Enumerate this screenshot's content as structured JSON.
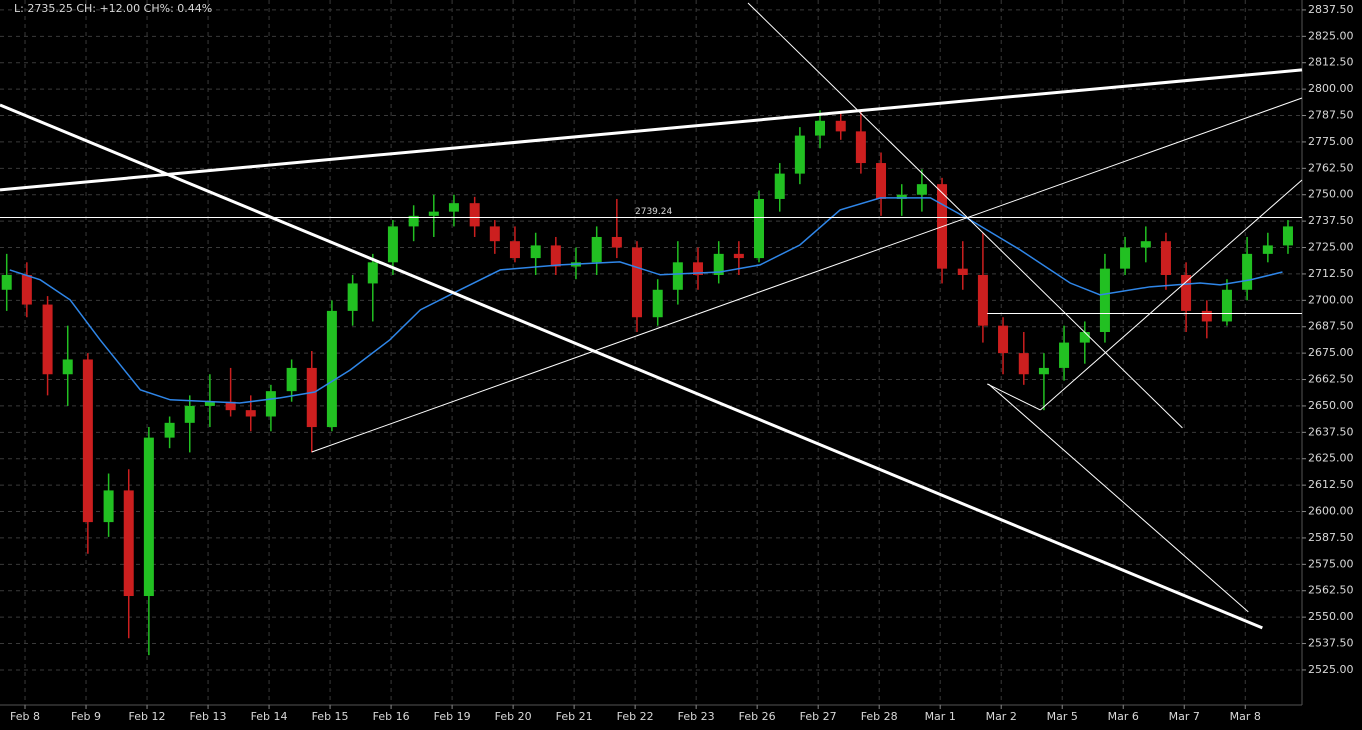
{
  "chart_data": {
    "type": "candlestick",
    "status": "L: 2735.25 CH: +12.00 CH%: 0.44%",
    "xlim": [
      -0.41,
      20.93
    ],
    "ylim": [
      2508.4,
      2842.2
    ],
    "grid": true,
    "up_color": "#22c022",
    "down_color": "#cc1f1f",
    "xticks": [
      {
        "value": 0,
        "label": "Feb 8"
      },
      {
        "value": 1,
        "label": "Feb 9"
      },
      {
        "value": 2,
        "label": "Feb 12"
      },
      {
        "value": 3,
        "label": "Feb 13"
      },
      {
        "value": 4,
        "label": "Feb 14"
      },
      {
        "value": 5,
        "label": "Feb 15"
      },
      {
        "value": 6,
        "label": "Feb 16"
      },
      {
        "value": 7,
        "label": "Feb 19"
      },
      {
        "value": 8,
        "label": "Feb 20"
      },
      {
        "value": 9,
        "label": "Feb 21"
      },
      {
        "value": 10,
        "label": "Feb 22"
      },
      {
        "value": 11,
        "label": "Feb 23"
      },
      {
        "value": 12,
        "label": "Feb 26"
      },
      {
        "value": 13,
        "label": "Feb 27"
      },
      {
        "value": 14,
        "label": "Feb 28"
      },
      {
        "value": 15,
        "label": "Mar 1"
      },
      {
        "value": 16,
        "label": "Mar 2"
      },
      {
        "value": 17,
        "label": "Mar 5"
      },
      {
        "value": 18,
        "label": "Mar 6"
      },
      {
        "value": 19,
        "label": "Mar 7"
      },
      {
        "value": 20,
        "label": "Mar 8"
      }
    ],
    "yticks": [
      {
        "value": 2525,
        "label": "2525.00"
      },
      {
        "value": 2537.5,
        "label": "2537.50"
      },
      {
        "value": 2550,
        "label": "2550.00"
      },
      {
        "value": 2562.5,
        "label": "2562.50"
      },
      {
        "value": 2575,
        "label": "2575.00"
      },
      {
        "value": 2587.5,
        "label": "2587.50"
      },
      {
        "value": 2600,
        "label": "2600.00"
      },
      {
        "value": 2612.5,
        "label": "2612.50"
      },
      {
        "value": 2625,
        "label": "2625.00"
      },
      {
        "value": 2637.5,
        "label": "2637.50"
      },
      {
        "value": 2650,
        "label": "2650.00"
      },
      {
        "value": 2662.5,
        "label": "2662.50"
      },
      {
        "value": 2675,
        "label": "2675.00"
      },
      {
        "value": 2687.5,
        "label": "2687.50"
      },
      {
        "value": 2700,
        "label": "2700.00"
      },
      {
        "value": 2712.5,
        "label": "2712.50"
      },
      {
        "value": 2725,
        "label": "2725.00"
      },
      {
        "value": 2737.5,
        "label": "2737.50"
      },
      {
        "value": 2750,
        "label": "2750.00"
      },
      {
        "value": 2762.5,
        "label": "2762.50"
      },
      {
        "value": 2775,
        "label": "2775.00"
      },
      {
        "value": 2787.5,
        "label": "2787.50"
      },
      {
        "value": 2800,
        "label": "2800.00"
      },
      {
        "value": 2812.5,
        "label": "2812.50"
      },
      {
        "value": 2825,
        "label": "2825.00"
      },
      {
        "value": 2837.5,
        "label": "2837.50"
      }
    ],
    "x": [
      -0.3,
      0.03,
      0.37,
      0.7,
      1.03,
      1.37,
      1.7,
      2.03,
      2.37,
      2.7,
      3.03,
      3.37,
      3.7,
      4.03,
      4.37,
      4.7,
      5.03,
      5.37,
      5.7,
      6.03,
      6.37,
      6.7,
      7.03,
      7.37,
      7.7,
      8.03,
      8.37,
      8.7,
      9.03,
      9.37,
      9.7,
      10.03,
      10.37,
      10.7,
      11.03,
      11.37,
      11.7,
      12.03,
      12.37,
      12.7,
      13.03,
      13.37,
      13.7,
      14.03,
      14.37,
      14.7,
      15.03,
      15.37,
      15.7,
      16.03,
      16.37,
      16.7,
      17.03,
      17.37,
      17.7,
      18.03,
      18.37,
      18.7,
      19.03,
      19.37,
      19.7,
      20.03,
      20.37,
      20.7
    ],
    "open": [
      2705,
      2712,
      2698,
      2665,
      2672,
      2595,
      2610,
      2560,
      2635,
      2642,
      2650,
      2652,
      2648,
      2645,
      2657,
      2668,
      2640,
      2695,
      2708,
      2718,
      2735,
      2740,
      2742,
      2746,
      2735,
      2728,
      2720,
      2726,
      2716,
      2718,
      2730,
      2725,
      2692,
      2705,
      2718,
      2712,
      2722,
      2720,
      2748,
      2760,
      2778,
      2785,
      2780,
      2765,
      2748,
      2750,
      2755,
      2715,
      2712,
      2688,
      2675,
      2665,
      2668,
      2680,
      2685,
      2715,
      2725,
      2728,
      2712,
      2695,
      2690,
      2705,
      2722,
      2726
    ],
    "high": [
      2722,
      2718,
      2702,
      2688,
      2675,
      2618,
      2620,
      2640,
      2645,
      2655,
      2665,
      2668,
      2655,
      2660,
      2672,
      2676,
      2700,
      2712,
      2722,
      2738,
      2745,
      2750,
      2750,
      2749,
      2738,
      2735,
      2732,
      2730,
      2725,
      2735,
      2748,
      2728,
      2710,
      2728,
      2725,
      2728,
      2728,
      2752,
      2765,
      2782,
      2790,
      2789,
      2790,
      2770,
      2755,
      2762,
      2758,
      2728,
      2732,
      2692,
      2685,
      2675,
      2688,
      2690,
      2722,
      2730,
      2735,
      2732,
      2718,
      2700,
      2710,
      2730,
      2732,
      2738
    ],
    "low": [
      2695,
      2692,
      2655,
      2650,
      2580,
      2588,
      2540,
      2532,
      2630,
      2628,
      2640,
      2645,
      2638,
      2638,
      2652,
      2628,
      2638,
      2688,
      2690,
      2712,
      2728,
      2730,
      2735,
      2730,
      2722,
      2718,
      2712,
      2712,
      2710,
      2712,
      2720,
      2685,
      2688,
      2698,
      2705,
      2708,
      2712,
      2718,
      2742,
      2755,
      2772,
      2776,
      2760,
      2740,
      2740,
      2742,
      2708,
      2705,
      2680,
      2665,
      2660,
      2648,
      2662,
      2670,
      2680,
      2712,
      2718,
      2705,
      2685,
      2682,
      2688,
      2700,
      2718,
      2722
    ],
    "close": [
      2712,
      2698,
      2665,
      2672,
      2595,
      2610,
      2560,
      2635,
      2642,
      2650,
      2652,
      2648,
      2645,
      2657,
      2668,
      2640,
      2695,
      2708,
      2718,
      2735,
      2740,
      2742,
      2746,
      2735,
      2728,
      2720,
      2726,
      2716,
      2718,
      2730,
      2725,
      2692,
      2705,
      2718,
      2712,
      2722,
      2720,
      2748,
      2760,
      2778,
      2785,
      2780,
      2765,
      2748,
      2750,
      2755,
      2715,
      2712,
      2688,
      2675,
      2665,
      2668,
      2680,
      2685,
      2715,
      2725,
      2728,
      2712,
      2695,
      2690,
      2705,
      2722,
      2726,
      2735
    ],
    "ma": {
      "color": "#2f86e8",
      "x": [
        -0.25,
        0.25,
        0.74,
        1.23,
        1.89,
        2.38,
        3.52,
        4.18,
        4.75,
        5.33,
        5.98,
        6.48,
        7.13,
        7.79,
        8.77,
        9.75,
        10.41,
        11.39,
        12.05,
        12.7,
        13.36,
        14.02,
        14.84,
        15.49,
        16.31,
        17.13,
        17.62,
        18.44,
        19.26,
        19.59,
        20.08,
        20.61
      ],
      "values": [
        2714.4,
        2709.7,
        2700.2,
        2681.3,
        2657.6,
        2652.9,
        2651.4,
        2653.8,
        2656.6,
        2667.0,
        2681.3,
        2695.5,
        2705.0,
        2714.4,
        2716.8,
        2718.2,
        2712.1,
        2713.4,
        2716.8,
        2726.2,
        2742.8,
        2748.5,
        2748.5,
        2738.1,
        2723.9,
        2708.2,
        2702.6,
        2706.4,
        2708.2,
        2707.3,
        2709.7,
        2713.4
      ]
    },
    "line_color": "#ffffff",
    "lines": [
      {
        "x": [
          -0.41,
          20.28
        ],
        "y": [
          2792.5,
          2544.9
        ],
        "thick": true
      },
      {
        "x": [
          -0.41,
          20.93
        ],
        "y": [
          2752.3,
          2809.1
        ],
        "thick": true
      },
      {
        "x": [
          11.85,
          18.97
        ],
        "y": [
          2840.8,
          2639.6
        ],
        "thick": false
      },
      {
        "x": [
          4.7,
          20.93
        ],
        "y": [
          2628.2,
          2795.8
        ],
        "thick": false
      },
      {
        "x": [
          -0.41,
          20.93
        ],
        "y": [
          2739.24,
          2739.24
        ],
        "thick": false,
        "label": "2739.24"
      },
      {
        "x": [
          15.77,
          20.93
        ],
        "y": [
          2693.75,
          2693.75
        ],
        "thick": false
      },
      {
        "x": [
          15.79,
          20.05
        ],
        "y": [
          2660.4,
          2552.5
        ],
        "thick": false
      },
      {
        "x": [
          16.64,
          20.93
        ],
        "y": [
          2648.1,
          2757.0
        ],
        "thick": false
      },
      {
        "x": [
          15.77,
          16.64
        ],
        "y": [
          2660.4,
          2648.1
        ],
        "thick": false
      }
    ]
  }
}
